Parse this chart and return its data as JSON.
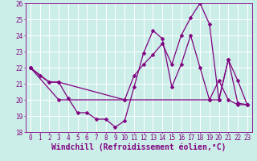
{
  "line1_x": [
    0,
    1,
    2,
    3,
    4,
    5,
    6,
    7,
    8,
    9,
    10,
    11,
    12,
    13,
    14,
    15,
    16,
    17,
    18,
    19,
    20,
    21,
    22,
    23
  ],
  "line1_y": [
    22.0,
    21.5,
    21.1,
    21.1,
    20.1,
    19.2,
    19.2,
    18.8,
    18.8,
    18.3,
    18.7,
    20.8,
    22.9,
    24.3,
    23.8,
    20.8,
    22.2,
    24.0,
    22.0,
    20.0,
    21.2,
    20.0,
    19.7,
    19.7
  ],
  "line2_x": [
    0,
    2,
    3,
    10,
    11,
    12,
    13,
    14,
    15,
    16,
    17,
    18,
    19,
    20,
    21,
    22,
    23
  ],
  "line2_y": [
    22.0,
    21.1,
    21.1,
    20.0,
    21.5,
    22.2,
    22.8,
    23.5,
    22.2,
    24.0,
    25.1,
    26.0,
    24.7,
    20.0,
    22.5,
    21.2,
    19.7
  ],
  "line3_x": [
    0,
    3,
    10,
    19,
    20,
    21,
    22,
    23
  ],
  "line3_y": [
    22.0,
    20.0,
    20.0,
    20.0,
    20.0,
    22.5,
    19.8,
    19.7
  ],
  "line_color": "#800080",
  "marker": "D",
  "markersize": 2.5,
  "background_color": "#cceee8",
  "grid_color": "#ffffff",
  "xlabel": "Windchill (Refroidissement éolien,°C)",
  "ylim": [
    18,
    26
  ],
  "xlim": [
    -0.5,
    23.5
  ],
  "yticks": [
    18,
    19,
    20,
    21,
    22,
    23,
    24,
    25,
    26
  ],
  "xticks": [
    0,
    1,
    2,
    3,
    4,
    5,
    6,
    7,
    8,
    9,
    10,
    11,
    12,
    13,
    14,
    15,
    16,
    17,
    18,
    19,
    20,
    21,
    22,
    23
  ],
  "tick_fontsize": 5.5,
  "xlabel_fontsize": 7.0,
  "linewidth": 0.9
}
